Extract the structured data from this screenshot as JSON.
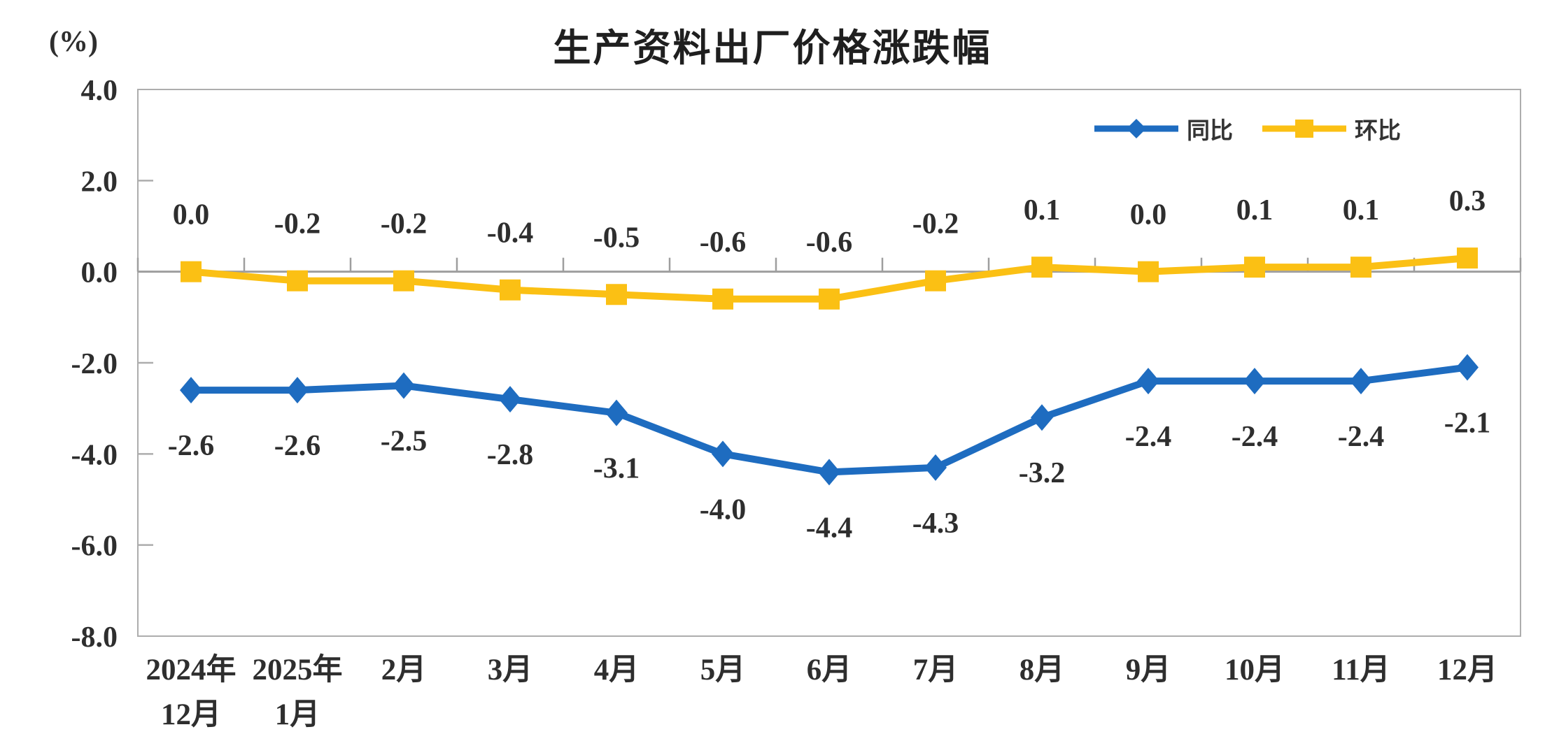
{
  "title": "生产资料出厂价格涨跌幅",
  "chart_data": {
    "type": "line",
    "title": "生产资料出厂价格涨跌幅",
    "ylabel": "(%)",
    "ylim": [
      -8.0,
      4.0
    ],
    "ytick_step": 2.0,
    "yticks": [
      "4.0",
      "2.0",
      "0.0",
      "-2.0",
      "-4.0",
      "-6.0",
      "-8.0"
    ],
    "ytick_values": [
      4.0,
      2.0,
      0.0,
      -2.0,
      -4.0,
      -6.0,
      -8.0
    ],
    "categories": [
      [
        "2024年",
        "12月"
      ],
      [
        "2025年",
        "1月"
      ],
      [
        "2月"
      ],
      [
        "3月"
      ],
      [
        "4月"
      ],
      [
        "5月"
      ],
      [
        "6月"
      ],
      [
        "7月"
      ],
      [
        "8月"
      ],
      [
        "9月"
      ],
      [
        "10月"
      ],
      [
        "11月"
      ],
      [
        "12月"
      ]
    ],
    "series": [
      {
        "name": "同比",
        "marker": "diamond",
        "color": "#1E6CC0",
        "label_position": "below",
        "values": [
          -2.6,
          -2.6,
          -2.5,
          -2.8,
          -3.1,
          -4.0,
          -4.4,
          -4.3,
          -3.2,
          -2.4,
          -2.4,
          -2.4,
          -2.1
        ],
        "labels": [
          "-2.6",
          "-2.6",
          "-2.5",
          "-2.8",
          "-3.1",
          "-4.0",
          "-4.4",
          "-4.3",
          "-3.2",
          "-2.4",
          "-2.4",
          "-2.4",
          "-2.1"
        ]
      },
      {
        "name": "环比",
        "marker": "square",
        "color": "#FBC014",
        "label_position": "above",
        "values": [
          0.0,
          -0.2,
          -0.2,
          -0.4,
          -0.5,
          -0.6,
          -0.6,
          -0.2,
          0.1,
          0.0,
          0.1,
          0.1,
          0.3
        ],
        "labels": [
          "0.0",
          "-0.2",
          "-0.2",
          "-0.4",
          "-0.5",
          "-0.6",
          "-0.6",
          "-0.2",
          "0.1",
          "0.0",
          "0.1",
          "0.1",
          "0.3"
        ]
      }
    ],
    "legend_position": "top-right",
    "grid": false,
    "axis_color": "#ADADAD",
    "zero_line_color": "#9E9E9E",
    "text_color": "#2e2e2e"
  }
}
